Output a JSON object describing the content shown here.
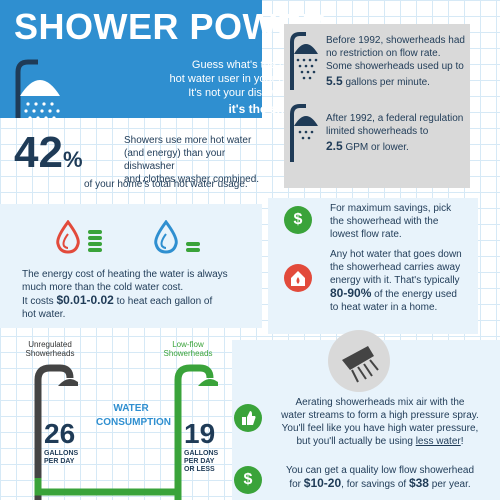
{
  "header": {
    "title": "SHOWER POWER",
    "intro_line1": "Guess what's the largest",
    "intro_line2": "hot water user in your home?",
    "intro_line3": "It's not your dishwasher...",
    "intro_answer": "it's the shower"
  },
  "stat42": {
    "value": "42",
    "unit": "%",
    "text1": "Showers use more hot water",
    "text2": "(and energy) than your dishwasher",
    "text3": "and clothes washer combined.",
    "caption": "of your home's total hot water usage."
  },
  "before1992": {
    "line1": "Before 1992, showerheads had",
    "line2": "no restriction on flow rate.",
    "line3": "Some showerheads used up to",
    "amount": "5.5",
    "unit": "gallons per minute."
  },
  "after1992": {
    "line1": "After 1992, a federal regulation",
    "line2": "limited showerheads to",
    "amount": "2.5",
    "unit": "GPM or lower."
  },
  "energy": {
    "line1": "The energy cost of heating the water is always",
    "line2": "much more than the cold water cost.",
    "cost_prefix": "It costs",
    "cost": "$0.01-0.02",
    "cost_suffix": "to heat each gallon of",
    "line4": "hot water."
  },
  "savings": {
    "line1": "For maximum savings, pick",
    "line2": "the showerhead with the",
    "line3": "lowest flow rate."
  },
  "hotwater": {
    "line1": "Any hot water that goes down",
    "line2": "the showerhead carries away",
    "line3": "energy with it. That's typically",
    "percent": "80-90%",
    "percent_suffix": "of the energy used",
    "line5": "to heat water in a home."
  },
  "comparison": {
    "unregulated_label1": "Unregulated",
    "unregulated_label2": "Showerheads",
    "unregulated_value": "26",
    "unregulated_unit1": "GALLONS",
    "unregulated_unit2": "PER DAY",
    "center_label1": "WATER",
    "center_label2": "CONSUMPTION",
    "lowflow_label1": "Low-flow",
    "lowflow_label2": "Showerheads",
    "lowflow_value": "19",
    "lowflow_unit1": "GALLONS",
    "lowflow_unit2": "PER DAY",
    "lowflow_unit3": "OR LESS"
  },
  "aerating": {
    "line1": "Aerating showerheads mix air with the",
    "line2": "water streams to form a high pressure spray.",
    "line3": "You'll feel like you have high water pressure,",
    "line4_prefix": "but you'll actually be using",
    "line4_link": "less water",
    "line4_suffix": "!"
  },
  "cost": {
    "line1": "You can get a quality low flow showerhead",
    "prefix": "for",
    "price": "$10-20",
    "middle": ", for savings of",
    "savings": "$38",
    "suffix": "per year."
  },
  "colors": {
    "blue": "#2f8fd0",
    "navy": "#1f3b57",
    "green": "#3aa33a",
    "red": "#e24a3b",
    "grey": "#d9d9d9"
  }
}
